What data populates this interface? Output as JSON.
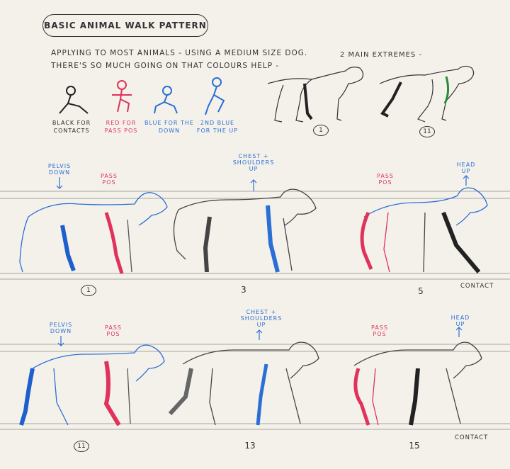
{
  "title": "BASIC ANIMAL WALK PATTERN",
  "intro": {
    "line1": "APPLYING TO MOST ANIMALS - USING A MEDIUM SIZE DOG.",
    "line2": "THERE'S SO MUCH GOING ON THAT COLOURS HELP -"
  },
  "extremes_label": "2 MAIN EXTREMES -",
  "extremes": [
    "1",
    "11"
  ],
  "key": [
    {
      "label": "BLACK FOR CONTACTS",
      "color": "#222222"
    },
    {
      "label": "RED FOR PASS POS",
      "color": "#e0325a"
    },
    {
      "label": "BLUE FOR the DOWN",
      "color": "#2a6fd6"
    },
    {
      "label": "2nd BLUE FOR the UP",
      "color": "#2a6fd6"
    }
  ],
  "row1": {
    "frames": [
      "1",
      "3",
      "5"
    ],
    "notes": {
      "pelvis_down": "PELVIS DOWN",
      "pass_pos_a": "PASS POS",
      "chest_up": "CHEST + SHOULDERS UP",
      "pass_pos_b": "PASS POS",
      "head_up": "HEAD UP"
    },
    "contact": "CONTACT"
  },
  "row2": {
    "frames": [
      "11",
      "13",
      "15"
    ],
    "notes": {
      "pelvis_down": "PELVIS DOWN",
      "pass_pos_a": "PASS POS",
      "chest_up": "CHEST + SHOULDERS UP",
      "pass_pos_b": "PASS POS",
      "head_up": "HEAD UP"
    },
    "contact": "CONTACT"
  }
}
